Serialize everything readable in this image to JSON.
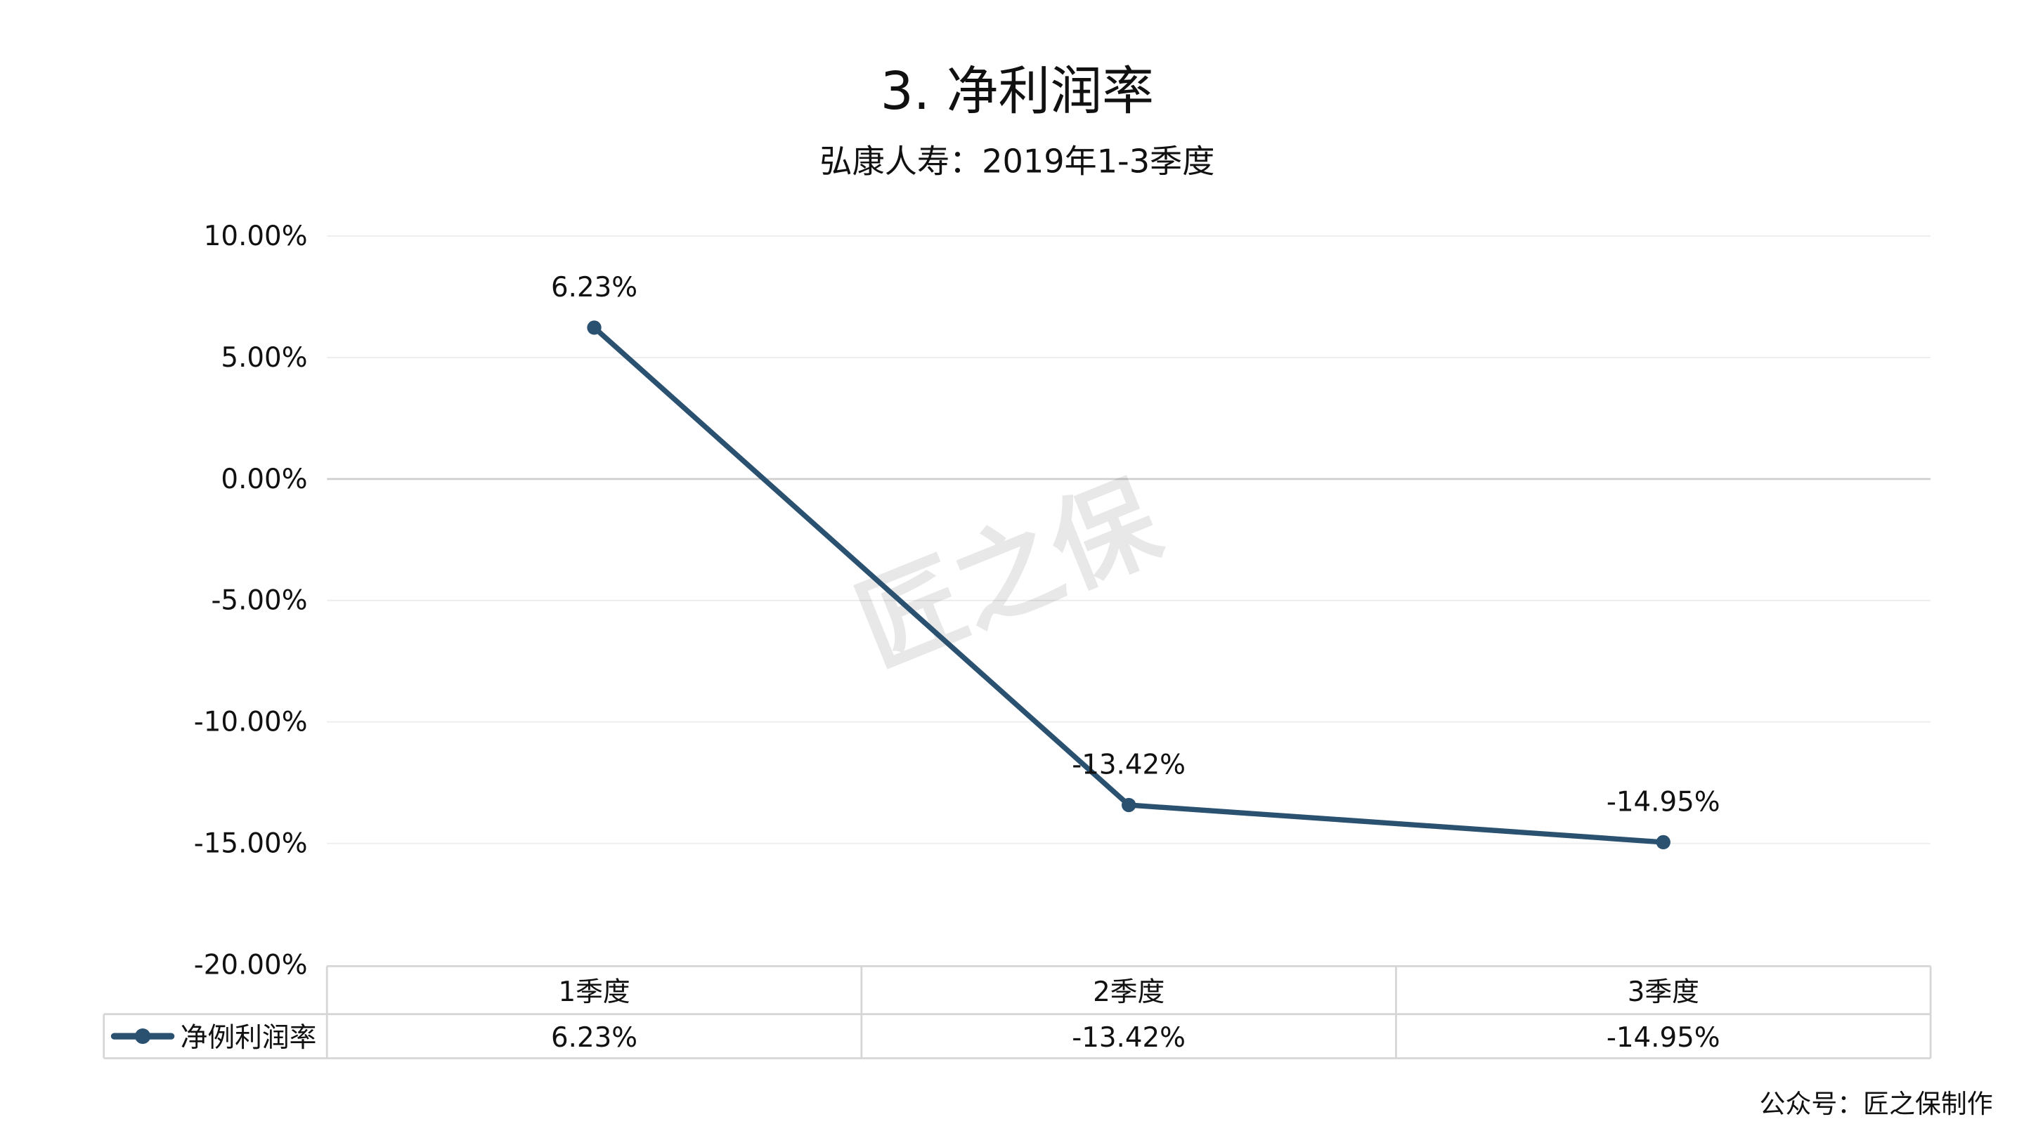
{
  "chart_data": {
    "type": "line",
    "title": "3.  净利润率",
    "subtitle": "弘康人寿：2019年1-3季度",
    "categories": [
      "1季度",
      "2季度",
      "3季度"
    ],
    "series": [
      {
        "name": "净例利润率",
        "values": [
          6.23,
          -13.42,
          -14.95
        ],
        "labels": [
          "6.23%",
          "-13.42%",
          "-14.95%"
        ],
        "color": "#2b5170"
      }
    ],
    "ylim": [
      -20,
      10
    ],
    "yticks": [
      10,
      5,
      0,
      -5,
      -10,
      -15,
      -20
    ],
    "ytick_labels": [
      "10.00%",
      "5.00%",
      "0.00%",
      "-5.00%",
      "-10.00%",
      "-15.00%",
      "-20.00%"
    ],
    "grid": true,
    "data_table": true,
    "legend": "in data table, bottom-left"
  },
  "watermark": "匠之保",
  "footer": "公众号：匠之保制作"
}
